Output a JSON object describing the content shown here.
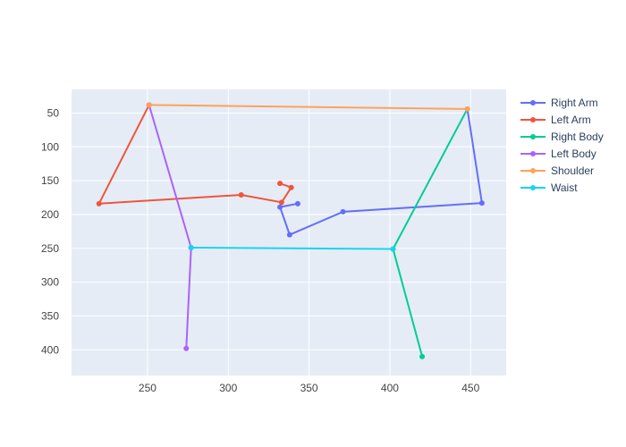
{
  "chart_data": {
    "type": "line",
    "title": "",
    "xlabel": "",
    "ylabel": "",
    "x_range": [
      203,
      472
    ],
    "y_range": [
      438,
      15
    ],
    "y_reversed": true,
    "grid": true,
    "legend_position": "right",
    "x_ticks": [
      250,
      300,
      350,
      400,
      450
    ],
    "y_ticks": [
      50,
      100,
      150,
      200,
      250,
      300,
      350,
      400
    ],
    "series": [
      {
        "name": "Right Arm",
        "color": "#636efa",
        "x": [
          343,
          332,
          338,
          371,
          457,
          448
        ],
        "y": [
          184,
          189,
          230,
          196,
          183,
          44
        ]
      },
      {
        "name": "Left Arm",
        "color": "#ef553b",
        "x": [
          332,
          339,
          333,
          308,
          220,
          251
        ],
        "y": [
          154,
          160,
          182,
          171,
          184,
          38
        ]
      },
      {
        "name": "Right Body",
        "color": "#00cc96",
        "x": [
          448,
          402,
          420
        ],
        "y": [
          44,
          251,
          410
        ]
      },
      {
        "name": "Left Body",
        "color": "#ab63fa",
        "x": [
          251,
          277,
          274
        ],
        "y": [
          38,
          249,
          398
        ]
      },
      {
        "name": "Shoulder",
        "color": "#ffa15a",
        "x": [
          251,
          448
        ],
        "y": [
          38,
          44
        ]
      },
      {
        "name": "Waist",
        "color": "#19d3f3",
        "x": [
          277,
          402
        ],
        "y": [
          249,
          251
        ]
      }
    ]
  },
  "style": {
    "plot_background": "#e5ecf6",
    "grid_color": "#ffffff",
    "page_background": "#ffffff"
  }
}
